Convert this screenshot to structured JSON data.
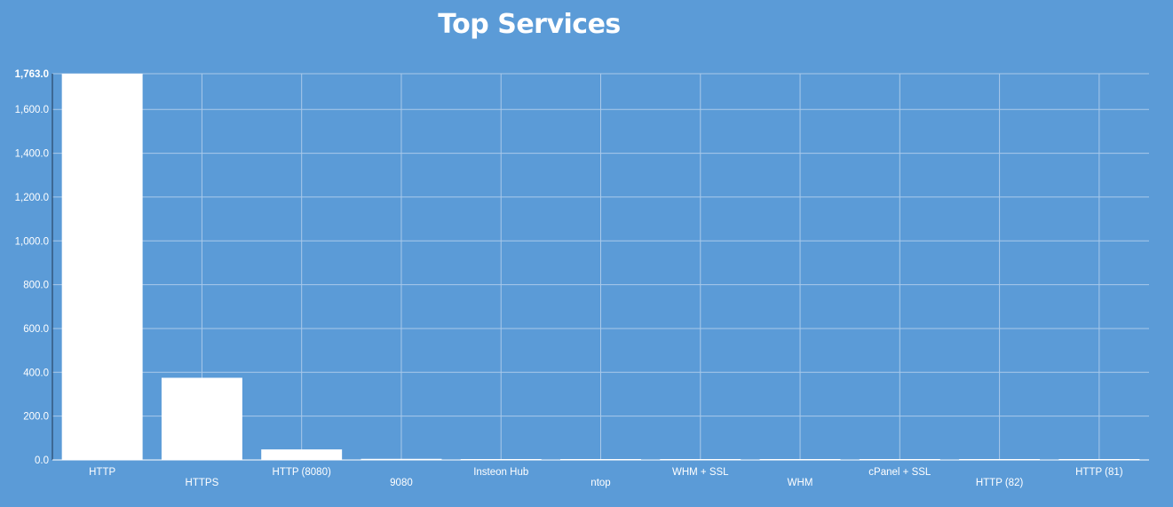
{
  "chart_data": {
    "type": "bar",
    "title": "Top Services",
    "xlabel": "",
    "ylabel": "",
    "categories": [
      "HTTP",
      "HTTPS",
      "HTTP (8080)",
      "9080",
      "Insteon Hub",
      "ntop",
      "WHM + SSL",
      "WHM",
      "cPanel + SSL",
      "HTTP (82)",
      "HTTP (81)"
    ],
    "values": [
      1763,
      375,
      48,
      5,
      4,
      3,
      3,
      3,
      3,
      3,
      3
    ],
    "ylim": [
      0,
      1763
    ],
    "yticks": [
      0,
      200,
      400,
      600,
      800,
      1000,
      1200,
      1400,
      1600,
      1763
    ],
    "ytick_labels": [
      "0.0",
      "200.0",
      "400.0",
      "600.0",
      "800.0",
      "1,000.0",
      "1,200.0",
      "1,400.0",
      "1,600.0",
      "1,763.0"
    ],
    "grid": true,
    "colors": {
      "background": "#5b9bd7",
      "bar": "#ffffff",
      "grid": "#a9c9ea",
      "axis": "#1f3550",
      "text": "#ffffff"
    }
  }
}
